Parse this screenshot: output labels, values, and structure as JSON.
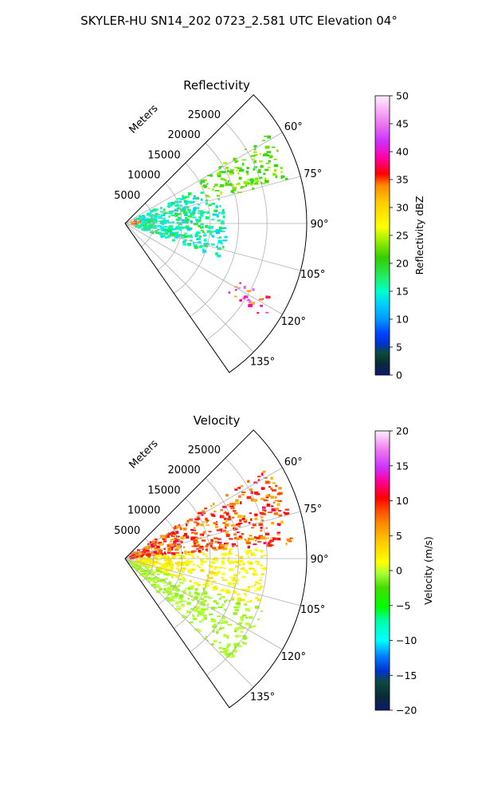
{
  "figure": {
    "suptitle": "SKYLER-HU  SN14_202  0723_2.581 UTC Elevation 04°"
  },
  "chart_data": [
    {
      "type": "heatmap",
      "subtype": "polar-sector radar PPI",
      "title": "Reflectivity",
      "radial_axis_label": "Meters",
      "range_ticks": [
        "5000",
        "10000",
        "15000",
        "20000",
        "25000"
      ],
      "range_max_m": 32000,
      "azimuth_ticks": [
        "60°",
        "75°",
        "90°",
        "105°",
        "120°",
        "135°"
      ],
      "azimuth_range_deg": [
        45,
        145
      ],
      "grid": true,
      "colorbar": {
        "label": "Reflectivity dBZ",
        "range": [
          0,
          50
        ],
        "ticks": [
          "0",
          "5",
          "10",
          "15",
          "20",
          "25",
          "30",
          "35",
          "40",
          "45",
          "50"
        ],
        "colormap": "NWS reflectivity"
      },
      "features": [
        {
          "description": "weak echoes (10-15 dBZ) widespread across sector",
          "azimuth_deg": [
            65,
            110
          ],
          "range_m": [
            2000,
            18000
          ],
          "value_dbz": [
            8,
            18
          ]
        },
        {
          "description": "moderate echoes (18-24 dBZ) in northeast band",
          "azimuth_deg": [
            58,
            75
          ],
          "range_m": [
            15000,
            30000
          ],
          "value_dbz": [
            18,
            24
          ]
        },
        {
          "description": "intense convective cell",
          "azimuth_deg": [
            117,
            124
          ],
          "range_m": [
            22000,
            30000
          ],
          "value_dbz": [
            30,
            45
          ]
        },
        {
          "description": "near-radar clutter",
          "azimuth_deg": [
            75,
            95
          ],
          "range_m": [
            0,
            3000
          ],
          "value_dbz": [
            25,
            40
          ]
        }
      ]
    },
    {
      "type": "heatmap",
      "subtype": "polar-sector radar PPI",
      "title": "Velocity",
      "radial_axis_label": "Meters",
      "range_ticks": [
        "5000",
        "10000",
        "15000",
        "20000",
        "25000"
      ],
      "range_max_m": 32000,
      "azimuth_ticks": [
        "60°",
        "75°",
        "90°",
        "105°",
        "120°",
        "135°"
      ],
      "azimuth_range_deg": [
        45,
        145
      ],
      "grid": true,
      "colorbar": {
        "label": "Velocity (m/s)",
        "range": [
          -20,
          20
        ],
        "ticks": [
          "-20",
          "-15",
          "-10",
          "-5",
          "0",
          "5",
          "10",
          "15",
          "20"
        ],
        "colormap": "NWS velocity"
      },
      "features": [
        {
          "description": "outbound velocities, orange to red, northeast",
          "azimuth_deg": [
            58,
            85
          ],
          "range_m": [
            0,
            30000
          ],
          "value_ms": [
            3,
            12
          ]
        },
        {
          "description": "near-zero velocities (yellow) central sector",
          "azimuth_deg": [
            85,
            120
          ],
          "range_m": [
            2000,
            25000
          ],
          "value_ms": [
            -1,
            2
          ]
        },
        {
          "description": "inbound velocities (light green) southwest",
          "azimuth_deg": [
            110,
            135
          ],
          "range_m": [
            0,
            26000
          ],
          "value_ms": [
            -5,
            -2
          ]
        }
      ]
    }
  ]
}
